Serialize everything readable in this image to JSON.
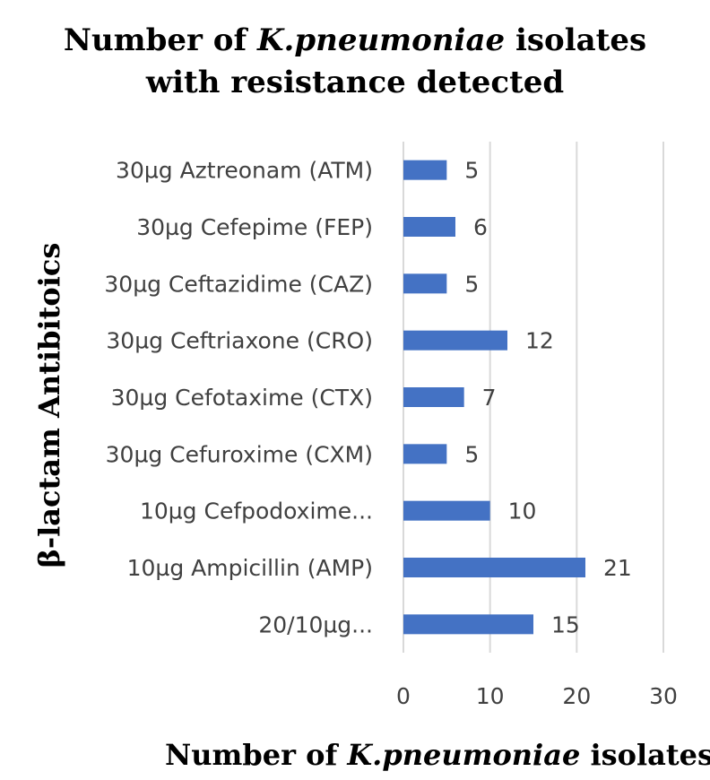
{
  "chart_data": {
    "type": "bar",
    "orientation": "horizontal",
    "title_line1_prefix": "Number of ",
    "title_line1_italic": "K.pneumoniae",
    "title_line1_suffix": " isolates",
    "title_line2": "with resistance detected",
    "xlabel_prefix": "Number of ",
    "xlabel_italic": "K.pneumoniae",
    "xlabel_suffix": " isolates",
    "ylabel": "β-lactam Antibitoics",
    "categories": [
      "30µg Aztreonam (ATM)",
      "30µg Cefepime (FEP)",
      "30µg Ceftazidime (CAZ)",
      "30µg Ceftriaxone (CRO)",
      "30µg Cefotaxime (CTX)",
      "30µg Cefuroxime (CXM)",
      "10µg Cefpodoxime...",
      "10µg Ampicillin (AMP)",
      "20/10µg..."
    ],
    "values": [
      5,
      6,
      5,
      12,
      7,
      5,
      10,
      21,
      15
    ],
    "data_labels": [
      "5",
      "6",
      "5",
      "12",
      "7",
      "5",
      "10",
      "21",
      "15"
    ],
    "xlim": [
      0,
      30
    ],
    "xticks": [
      "0",
      "10",
      "20",
      "30"
    ],
    "grid": true,
    "legend": "none",
    "bar_color": "#4472c4"
  }
}
